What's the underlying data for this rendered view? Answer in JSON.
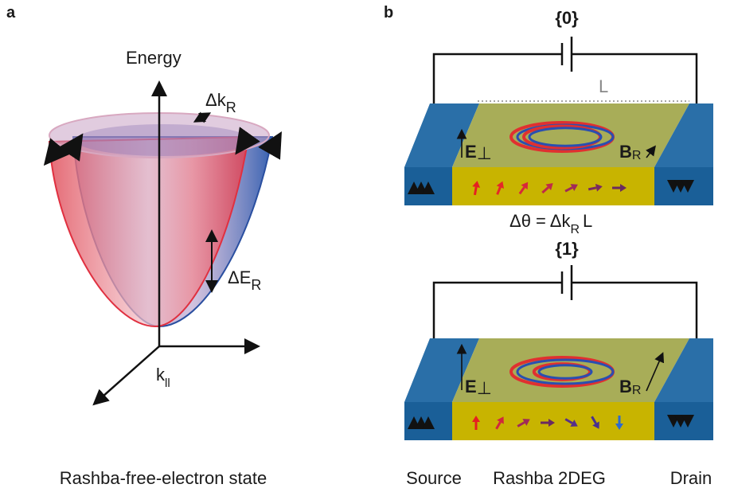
{
  "panel_a": {
    "label": "a",
    "energy_axis": "Energy",
    "k_axis": {
      "text": "k",
      "sub": "ll"
    },
    "splitting_k": {
      "text": "Δk",
      "sub": "R"
    },
    "splitting_e": {
      "text": "ΔE",
      "sub": "R"
    },
    "caption": "Rashba-free-electron state"
  },
  "panel_b": {
    "label": "b",
    "length": "L",
    "phase": {
      "text": "Δθ = Δk",
      "sub": "R",
      "tail": "L"
    },
    "devices": [
      {
        "state": "{0}",
        "e_field": {
          "text": "E",
          "sub": "⊥"
        },
        "b_field": {
          "text": "B",
          "sub": "R"
        }
      },
      {
        "state": "{1}",
        "e_field": {
          "text": "E",
          "sub": "⊥"
        },
        "b_field": {
          "text": "B",
          "sub": "R"
        }
      }
    ],
    "captions": [
      "Source",
      "Rashba 2DEG",
      "Drain"
    ]
  }
}
